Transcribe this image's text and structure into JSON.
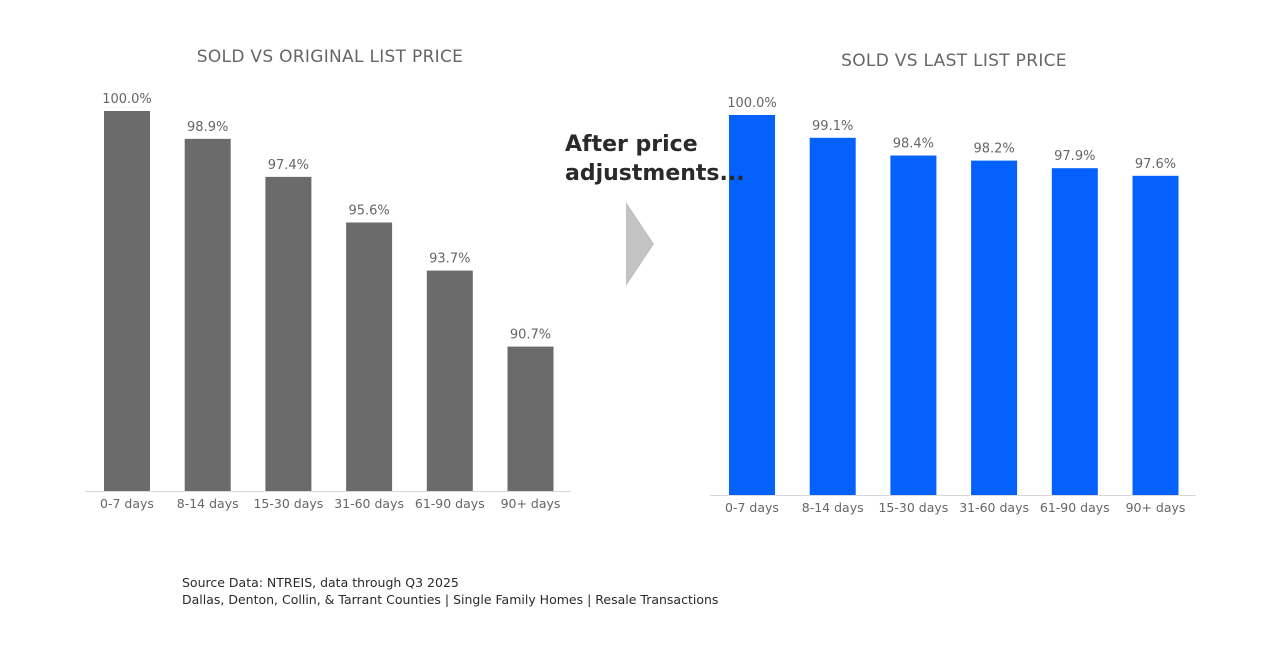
{
  "colors": {
    "original_bar": "#6b6b6b",
    "last_bar": "#0561fc",
    "axis": "#d9d9d9",
    "label": "#666666"
  },
  "callout": {
    "line1": "After price",
    "line2": "adjustments...",
    "icon": "right-arrow-icon"
  },
  "source": {
    "line1": "Source Data:  NTREIS, data through Q3 2025",
    "line2": "Dallas, Denton, Collin, & Tarrant Counties | Single Family Homes | Resale Transactions"
  },
  "chart_data": [
    {
      "type": "bar",
      "title": "SOLD VS ORIGINAL LIST PRICE",
      "categories": [
        "0-7 days",
        "8-14 days",
        "15-30 days",
        "31-60 days",
        "61-90 days",
        "90+ days"
      ],
      "values": [
        100.0,
        98.9,
        97.4,
        95.6,
        93.7,
        90.7
      ],
      "labels": [
        "100.0%",
        "98.9%",
        "97.4%",
        "95.6%",
        "93.7%",
        "90.7%"
      ],
      "ylim": [
        85,
        100
      ],
      "grid": false,
      "color": "#6b6b6b"
    },
    {
      "type": "bar",
      "title": "SOLD VS LAST LIST PRICE",
      "categories": [
        "0-7 days",
        "8-14 days",
        "15-30 days",
        "31-60 days",
        "61-90 days",
        "90+ days"
      ],
      "values": [
        100.0,
        99.1,
        98.4,
        98.2,
        97.9,
        97.6
      ],
      "labels": [
        "100.0%",
        "99.1%",
        "98.4%",
        "98.2%",
        "97.9%",
        "97.6%"
      ],
      "ylim": [
        85,
        100
      ],
      "grid": false,
      "color": "#0561fc"
    }
  ]
}
